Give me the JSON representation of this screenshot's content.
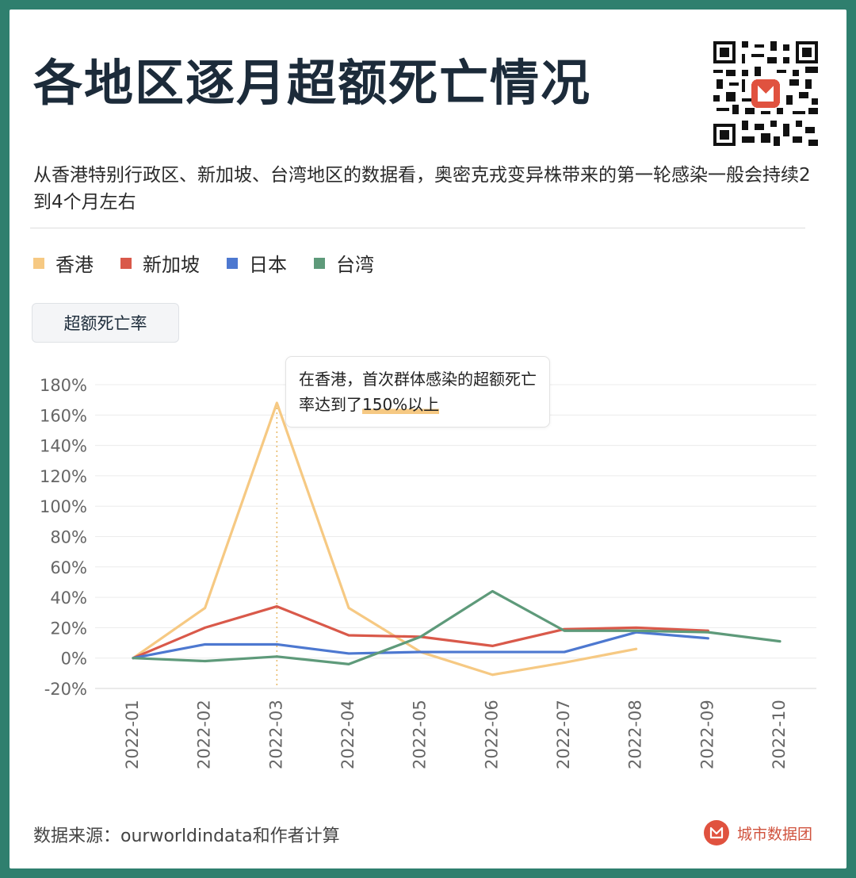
{
  "title": "各地区逐月超额死亡情况",
  "subtitle": "从香港特别行政区、新加坡、台湾地区的数据看，奥密克戎变异株带来的第一轮感染一般会持续2到4个月左右",
  "metric_tab": "超额死亡率",
  "annotation": {
    "text_prefix": "在香港，首次群体感染的超额死亡率达到了",
    "highlight": "150%以上"
  },
  "source": "数据来源：ourworldindata和作者计算",
  "brand": "城市数据团",
  "icons": {
    "qr": "qr-code-icon",
    "brand": "city-data-logo-icon"
  },
  "colors": {
    "background": "#2f7f6e",
    "hongkong": "#f6c983",
    "singapore": "#d9594a",
    "japan": "#4d78d0",
    "taiwan": "#5e9a7a"
  },
  "chart_data": {
    "type": "line",
    "title": "",
    "xlabel": "",
    "ylabel": "",
    "x": [
      "2022-01",
      "2022-02",
      "2022-03",
      "2022-04",
      "2022-05",
      "2022-06",
      "2022-07",
      "2022-08",
      "2022-09",
      "2022-10"
    ],
    "ylim": [
      -20,
      180
    ],
    "yticks": [
      -20,
      0,
      20,
      40,
      60,
      80,
      100,
      120,
      140,
      160,
      180
    ],
    "ytick_labels": [
      "-20%",
      "0%",
      "20%",
      "40%",
      "60%",
      "80%",
      "100%",
      "120%",
      "140%",
      "160%",
      "180%"
    ],
    "grid": true,
    "legend_position": "top-left",
    "reference_line_x": "2022-03",
    "series": [
      {
        "name": "香港",
        "color": "#f6c983",
        "values": [
          0,
          33,
          168,
          33,
          4,
          -11,
          -3,
          6,
          null,
          null
        ]
      },
      {
        "name": "新加坡",
        "color": "#d9594a",
        "values": [
          0,
          20,
          34,
          15,
          14,
          8,
          19,
          20,
          18,
          null
        ]
      },
      {
        "name": "日本",
        "color": "#4d78d0",
        "values": [
          0,
          9,
          9,
          3,
          4,
          4,
          4,
          17,
          13,
          null
        ]
      },
      {
        "name": "台湾",
        "color": "#5e9a7a",
        "values": [
          0,
          -2,
          1,
          -4,
          14,
          44,
          18,
          18,
          17,
          11
        ]
      }
    ]
  }
}
